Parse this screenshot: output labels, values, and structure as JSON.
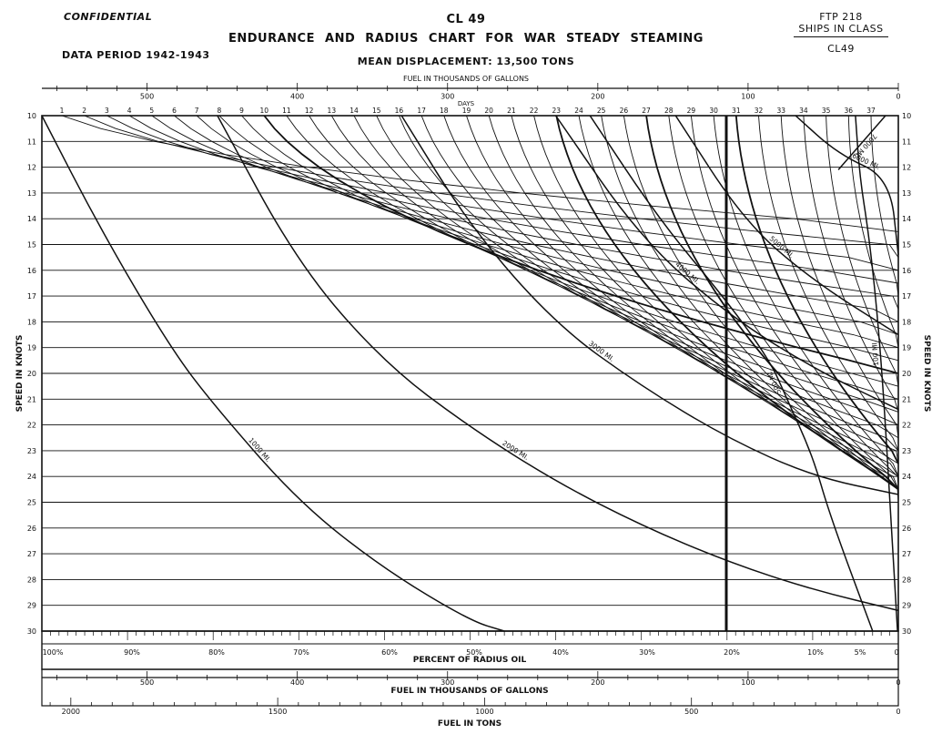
{
  "header": {
    "confidential": "CONFIDENTIAL",
    "ship_code": "CL 49",
    "title": "ENDURANCE AND RADIUS CHART FOR WAR STEADY STEAMING",
    "data_period": "DATA PERIOD 1942-1943",
    "displacement": "MEAN DISPLACEMENT: 13,500 TONS",
    "ftp": "FTP 218",
    "ships_in_class_label": "SHIPS IN CLASS",
    "ships_in_class": "CL49"
  },
  "chart_data": {
    "type": "line",
    "title": "ENDURANCE AND RADIUS CHART FOR WAR STEADY STEAMING",
    "ylabel": "SPEED IN KNOTS",
    "ylim": [
      10,
      30
    ],
    "y_ticks": [
      10,
      11,
      12,
      13,
      14,
      15,
      16,
      17,
      18,
      19,
      20,
      21,
      22,
      23,
      24,
      25,
      26,
      27,
      28,
      29,
      30
    ],
    "top_axis": {
      "label": "FUEL IN THOUSANDS OF GALLONS",
      "range": [
        570,
        0
      ],
      "ticks": [
        500,
        400,
        300,
        200,
        100,
        0
      ]
    },
    "days_axis": {
      "label": "DAYS",
      "ticks": [
        1,
        2,
        3,
        4,
        5,
        6,
        7,
        8,
        9,
        10,
        11,
        12,
        13,
        14,
        15,
        16,
        17,
        18,
        19,
        20,
        21,
        22,
        23,
        24,
        25,
        26,
        27,
        28,
        29,
        30,
        31,
        32,
        33,
        34,
        35,
        36,
        37
      ]
    },
    "bottom_axes": [
      {
        "label": "PERCENT OF RADIUS OIL",
        "ticks": [
          "100%",
          "90%",
          "80%",
          "70%",
          "60%",
          "50%",
          "40%",
          "30%",
          "20%",
          "10%",
          "5%",
          "0"
        ]
      },
      {
        "label": "FUEL IN THOUSANDS OF GALLONS",
        "ticks": [
          500,
          400,
          300,
          200,
          100,
          0
        ]
      },
      {
        "label": "FUEL IN TONS",
        "ticks": [
          2000,
          1500,
          1000,
          500,
          0
        ]
      }
    ],
    "radius_series": [
      {
        "name": "7000 MI.",
        "points": [
          [
            0.985,
            10
          ],
          [
            0.93,
            12.1
          ]
        ]
      },
      {
        "name": "6000 MI.",
        "points": [
          [
            0.88,
            10
          ],
          [
            0.93,
            11.5
          ],
          [
            0.99,
            12.4
          ],
          [
            1.0,
            15.4
          ]
        ]
      },
      {
        "name": "5000 MI.",
        "points": [
          [
            0.74,
            10
          ],
          [
            0.82,
            14.1
          ],
          [
            0.9,
            16.4
          ],
          [
            1.0,
            18.5
          ]
        ]
      },
      {
        "name": "4000 MI.",
        "points": [
          [
            0.6,
            10
          ],
          [
            0.7,
            14.8
          ],
          [
            0.8,
            17.7
          ],
          [
            0.9,
            19.8
          ],
          [
            1.0,
            21.4
          ]
        ]
      },
      {
        "name": "3000 MI.",
        "points": [
          [
            0.42,
            10
          ],
          [
            0.5,
            14.3
          ],
          [
            0.6,
            18.1
          ],
          [
            0.7,
            20.5
          ],
          [
            0.8,
            22.5
          ],
          [
            0.9,
            24.0
          ],
          [
            1.0,
            24.7
          ]
        ]
      },
      {
        "name": "2000 MI.",
        "points": [
          [
            0.205,
            10
          ],
          [
            0.3,
            15.8
          ],
          [
            0.4,
            19.6
          ],
          [
            0.5,
            22.1
          ],
          [
            0.6,
            24.2
          ],
          [
            0.7,
            25.9
          ],
          [
            0.8,
            27.3
          ],
          [
            0.9,
            28.4
          ],
          [
            1.0,
            29.2
          ]
        ]
      },
      {
        "name": "1000 MI.",
        "points": [
          [
            0.0,
            10
          ],
          [
            0.07,
            14.5
          ],
          [
            0.15,
            19.0
          ],
          [
            0.2,
            21.2
          ],
          [
            0.3,
            25.0
          ],
          [
            0.4,
            27.6
          ],
          [
            0.5,
            29.6
          ],
          [
            0.54,
            30
          ]
        ]
      },
      {
        "name": "500 MI.",
        "points": [
          [
            0.97,
            30
          ],
          [
            0.92,
            25.5
          ],
          [
            0.9,
            23.2
          ],
          [
            0.87,
            21.0
          ],
          [
            0.85,
            19.5
          ],
          [
            0.8,
            17.2
          ],
          [
            0.72,
            14.0
          ],
          [
            0.64,
            10
          ]
        ]
      },
      {
        "name": "100 MI.",
        "points": [
          [
            0.999,
            30
          ],
          [
            0.992,
            26.0
          ],
          [
            0.983,
            20.9
          ],
          [
            0.975,
            17.5
          ],
          [
            0.965,
            14.5
          ],
          [
            0.955,
            12.4
          ],
          [
            0.95,
            10
          ]
        ]
      }
    ],
    "days_series_note": "Endurance-in-days curves descend from each day mark on the top edge; days 10, 20 (approx.) and 30 drawn heavy.",
    "reference_line_percent": "20%"
  },
  "labels": {
    "ylabel_left": "SPEED IN KNOTS",
    "ylabel_right": "SPEED IN KNOTS",
    "radius_curve_labels": [
      "7000 MI.",
      "6000 MI.",
      "5000 MI.",
      "4000 MI.",
      "3000 MI.",
      "2000 MI.",
      "1000 MI.",
      "500 MI.",
      "100 MI."
    ],
    "top_fuel_label": "FUEL IN THOUSANDS OF GALLONS",
    "days_label": "DAYS",
    "bottom_percent_label": "PERCENT OF RADIUS OIL",
    "bottom_fuel_gal_label": "FUEL IN THOUSANDS OF GALLONS",
    "bottom_fuel_tons_label": "FUEL IN TONS"
  }
}
